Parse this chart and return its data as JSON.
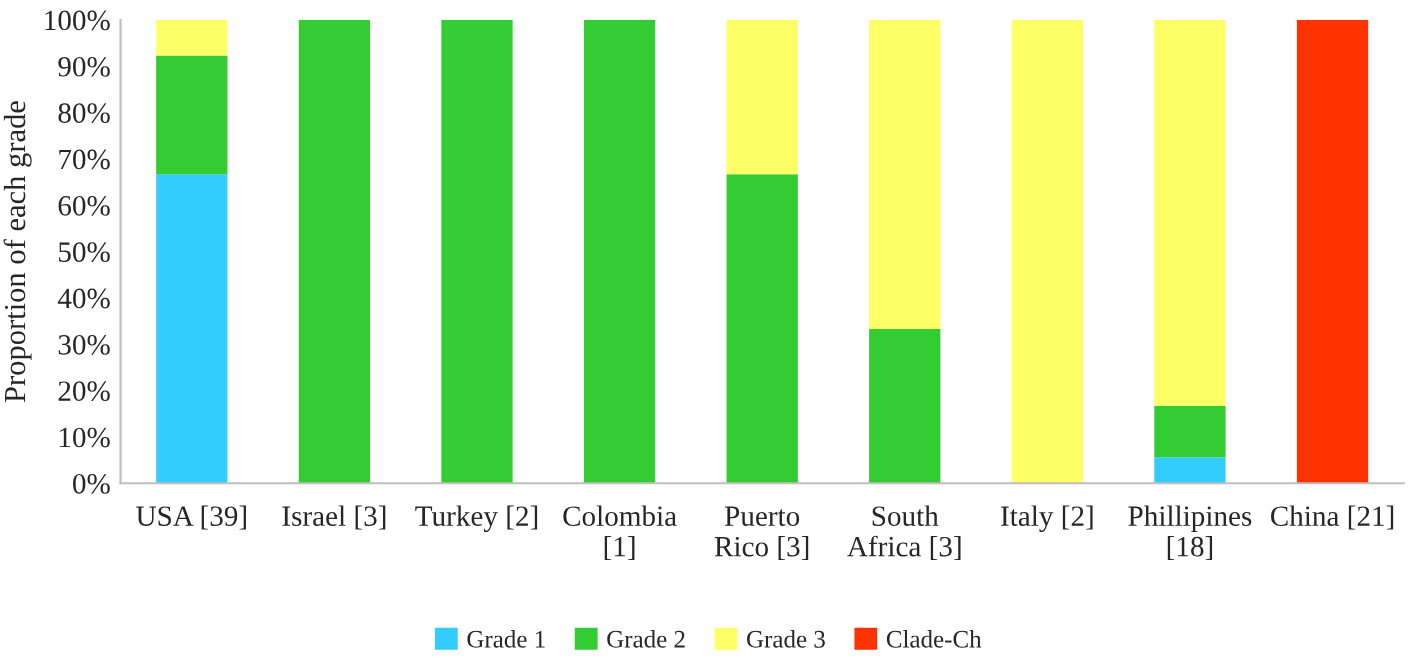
{
  "chart_data": {
    "type": "bar",
    "stacked": true,
    "ylabel": "Proportion of each grade",
    "categories": [
      "USA [39]",
      "Israel [3]",
      "Turkey [2]",
      "Colombia\n[1]",
      "Puerto\nRico [3]",
      "South\nAfrica [3]",
      "Italy [2]",
      "Phillipines\n[18]",
      "China [21]"
    ],
    "series": [
      {
        "name": "Grade 1",
        "color": "#33ccff",
        "values": [
          66.7,
          null,
          null,
          null,
          null,
          null,
          null,
          5.6,
          null
        ]
      },
      {
        "name": "Grade 2",
        "color": "#33cc33",
        "values": [
          25.6,
          100,
          100,
          100,
          66.7,
          33.3,
          null,
          11.1,
          null
        ]
      },
      {
        "name": "Grade 3",
        "color": "#ffff66",
        "values": [
          7.7,
          null,
          null,
          null,
          33.3,
          66.7,
          100,
          83.3,
          null
        ]
      },
      {
        "name": "Clade-Ch",
        "color": "#ff3300",
        "values": [
          null,
          null,
          null,
          null,
          null,
          null,
          null,
          null,
          100
        ]
      }
    ],
    "ylim": [
      0,
      100
    ],
    "yticks": [
      {
        "value": 0,
        "label": "0%"
      },
      {
        "value": 10,
        "label": "10%"
      },
      {
        "value": 20,
        "label": "20%"
      },
      {
        "value": 30,
        "label": "30%"
      },
      {
        "value": 40,
        "label": "40%"
      },
      {
        "value": 50,
        "label": "50%"
      },
      {
        "value": 60,
        "label": "60%"
      },
      {
        "value": 70,
        "label": "70%"
      },
      {
        "value": 80,
        "label": "80%"
      },
      {
        "value": 90,
        "label": "90%"
      },
      {
        "value": 100,
        "label": "100%"
      }
    ],
    "grid": false,
    "legend": "bottom"
  }
}
